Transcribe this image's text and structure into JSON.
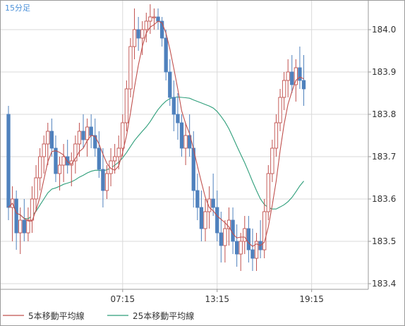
{
  "timeframe_label": "15分足",
  "colors": {
    "up": "#c0504d",
    "down": "#4f81bd",
    "ma5": "#c0504d",
    "ma25": "#2e9e7a",
    "grid": "#d9d9d9",
    "axis": "#9a9a9a",
    "timeframe": "#4a90d9"
  },
  "chart_data": {
    "type": "candlestick",
    "x_tick_labels": [
      {
        "label": "07:15",
        "index": 29
      },
      {
        "label": "13:15",
        "index": 53
      },
      {
        "label": "19:15",
        "index": 77
      }
    ],
    "y_tick_labels": [
      "184.0",
      "183.9",
      "183.8",
      "183.7",
      "183.6",
      "183.5",
      "183.4"
    ],
    "y_ticks": [
      184.0,
      183.9,
      183.8,
      183.7,
      183.6,
      183.5,
      183.4
    ],
    "ylim": [
      183.385,
      184.06
    ],
    "grid": true,
    "legend": {
      "placement": "bottom-left",
      "items": [
        {
          "name": "5本移動平均線",
          "color": "#c0504d"
        },
        {
          "name": "25本移動平均線",
          "color": "#2e9e7a"
        }
      ]
    },
    "candles": [
      [
        183.8,
        183.82,
        183.55,
        183.58
      ],
      [
        183.58,
        183.63,
        183.5,
        183.6
      ],
      [
        183.6,
        183.62,
        183.48,
        183.52
      ],
      [
        183.52,
        183.58,
        183.47,
        183.55
      ],
      [
        183.55,
        183.6,
        183.5,
        183.52
      ],
      [
        183.52,
        183.58,
        183.5,
        183.55
      ],
      [
        183.55,
        183.63,
        183.52,
        183.6
      ],
      [
        183.6,
        183.68,
        183.57,
        183.65
      ],
      [
        183.65,
        183.72,
        183.62,
        183.7
      ],
      [
        183.7,
        183.75,
        183.66,
        183.73
      ],
      [
        183.73,
        183.78,
        183.68,
        183.76
      ],
      [
        183.76,
        183.79,
        183.7,
        183.72
      ],
      [
        183.72,
        183.75,
        183.64,
        183.66
      ],
      [
        183.66,
        183.7,
        183.62,
        183.68
      ],
      [
        183.68,
        183.73,
        183.64,
        183.7
      ],
      [
        183.7,
        183.74,
        183.66,
        183.68
      ],
      [
        183.68,
        183.71,
        183.63,
        183.69
      ],
      [
        183.69,
        183.75,
        183.66,
        183.73
      ],
      [
        183.73,
        183.78,
        183.7,
        183.76
      ],
      [
        183.76,
        183.8,
        183.72,
        183.74
      ],
      [
        183.74,
        183.79,
        183.7,
        183.77
      ],
      [
        183.77,
        183.8,
        183.72,
        183.75
      ],
      [
        183.75,
        183.79,
        183.7,
        183.72
      ],
      [
        183.72,
        183.76,
        183.65,
        183.67
      ],
      [
        183.67,
        183.72,
        183.58,
        183.62
      ],
      [
        183.62,
        183.68,
        183.6,
        183.66
      ],
      [
        183.66,
        183.72,
        183.63,
        183.69
      ],
      [
        183.69,
        183.73,
        183.66,
        183.7
      ],
      [
        183.7,
        183.75,
        183.67,
        183.72
      ],
      [
        183.72,
        183.8,
        183.7,
        183.78
      ],
      [
        183.78,
        183.88,
        183.76,
        183.86
      ],
      [
        183.86,
        183.98,
        183.84,
        183.96
      ],
      [
        183.96,
        184.05,
        183.93,
        184.0
      ],
      [
        184.0,
        184.03,
        183.95,
        183.98
      ],
      [
        183.98,
        184.02,
        183.94,
        184.0
      ],
      [
        184.0,
        184.04,
        183.97,
        184.02
      ],
      [
        184.02,
        184.06,
        183.99,
        184.03
      ],
      [
        184.03,
        184.05,
        184.0,
        184.03
      ],
      [
        184.03,
        184.05,
        184.0,
        184.02
      ],
      [
        184.02,
        184.03,
        183.96,
        183.98
      ],
      [
        183.98,
        184.0,
        183.88,
        183.9
      ],
      [
        183.9,
        183.93,
        183.82,
        183.84
      ],
      [
        183.84,
        183.88,
        183.76,
        183.8
      ],
      [
        183.8,
        183.85,
        183.74,
        183.78
      ],
      [
        183.78,
        183.8,
        183.7,
        183.72
      ],
      [
        183.72,
        183.78,
        183.68,
        183.75
      ],
      [
        183.75,
        183.8,
        183.7,
        183.72
      ],
      [
        183.72,
        183.76,
        183.58,
        183.62
      ],
      [
        183.62,
        183.66,
        183.55,
        183.58
      ],
      [
        183.58,
        183.62,
        183.5,
        183.53
      ],
      [
        183.53,
        183.6,
        183.5,
        183.57
      ],
      [
        183.57,
        183.63,
        183.53,
        183.6
      ],
      [
        183.6,
        183.66,
        183.56,
        183.58
      ],
      [
        183.58,
        183.62,
        183.5,
        183.52
      ],
      [
        183.52,
        183.57,
        183.45,
        183.49
      ],
      [
        183.49,
        183.55,
        183.45,
        183.53
      ],
      [
        183.53,
        183.58,
        183.49,
        183.55
      ],
      [
        183.55,
        183.58,
        183.47,
        183.5
      ],
      [
        183.5,
        183.54,
        183.44,
        183.47
      ],
      [
        183.47,
        183.52,
        183.43,
        183.5
      ],
      [
        183.5,
        183.56,
        183.47,
        183.53
      ],
      [
        183.53,
        183.56,
        183.45,
        183.48
      ],
      [
        183.48,
        183.53,
        183.43,
        183.46
      ],
      [
        183.46,
        183.52,
        183.43,
        183.5
      ],
      [
        183.5,
        183.55,
        183.46,
        183.48
      ],
      [
        183.48,
        183.6,
        183.46,
        183.57
      ],
      [
        183.57,
        183.68,
        183.55,
        183.66
      ],
      [
        183.66,
        183.74,
        183.64,
        183.72
      ],
      [
        183.72,
        183.8,
        183.7,
        183.78
      ],
      [
        183.78,
        183.86,
        183.76,
        183.84
      ],
      [
        183.84,
        183.9,
        183.81,
        183.88
      ],
      [
        183.88,
        183.93,
        183.84,
        183.9
      ],
      [
        183.9,
        183.94,
        183.85,
        183.87
      ],
      [
        183.87,
        183.93,
        183.83,
        183.91
      ],
      [
        183.91,
        183.96,
        183.86,
        183.88
      ],
      [
        183.88,
        183.94,
        183.82,
        183.86
      ]
    ]
  }
}
